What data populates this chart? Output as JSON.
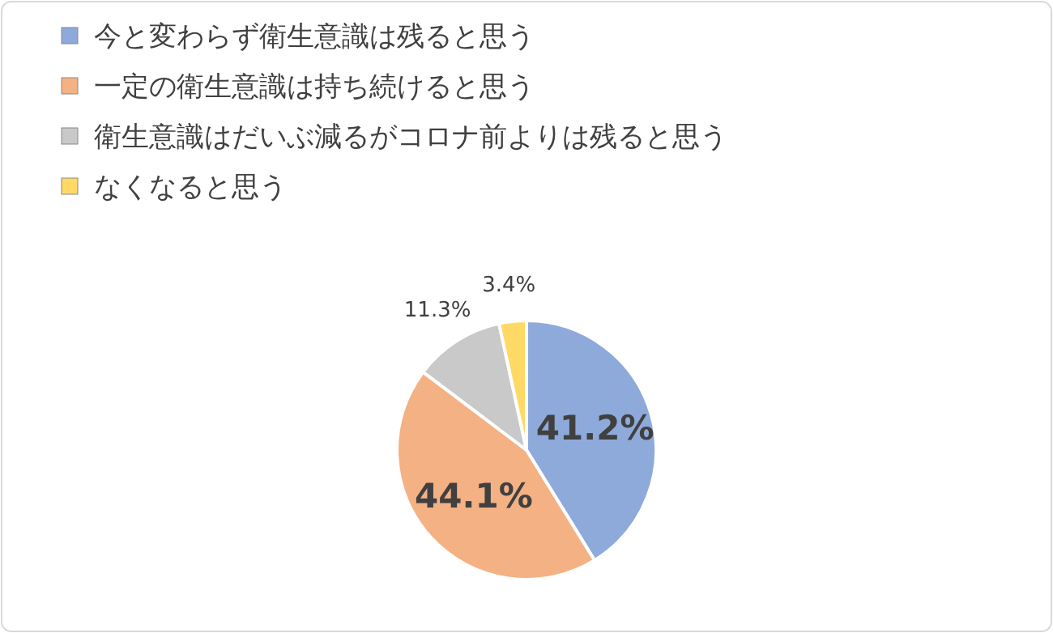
{
  "chart_data": {
    "type": "pie",
    "categories": [
      "今と変わらず衛生意識は残ると思う",
      "一定の衛生意識は持ち続けると思う",
      "衛生意識はだいぶ減るがコロナ前よりは残ると思う",
      "なくなると思う"
    ],
    "values": [
      41.2,
      44.1,
      11.3,
      3.4
    ],
    "colors": [
      "#8eaadb",
      "#f4b183",
      "#c9c9c9",
      "#ffd966"
    ],
    "value_labels": [
      "41.2%",
      "44.1%",
      "11.3%",
      "3.4%"
    ],
    "legend": "top"
  }
}
